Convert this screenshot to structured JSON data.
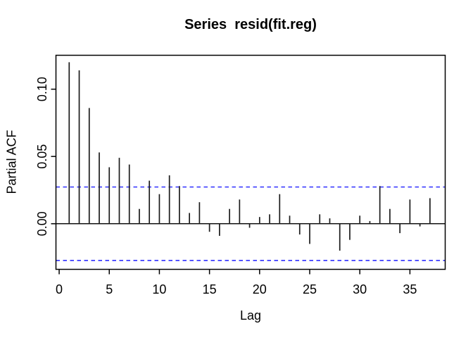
{
  "figure": {
    "title": "Series  resid(fit.reg)"
  },
  "chart_data": {
    "type": "bar",
    "variant": "pacf-stick-plot",
    "title": "Series  resid(fit.reg)",
    "xlabel": "Lag",
    "ylabel": "Partial ACF",
    "lags": [
      1,
      2,
      3,
      4,
      5,
      6,
      7,
      8,
      9,
      10,
      11,
      12,
      13,
      14,
      15,
      16,
      17,
      18,
      19,
      20,
      21,
      22,
      23,
      24,
      25,
      26,
      27,
      28,
      29,
      30,
      31,
      32,
      33,
      34,
      35,
      36,
      37
    ],
    "values": [
      0.12,
      0.114,
      0.086,
      0.053,
      0.042,
      0.049,
      0.044,
      0.011,
      0.032,
      0.022,
      0.036,
      0.028,
      0.008,
      0.016,
      -0.006,
      -0.009,
      0.011,
      0.018,
      -0.003,
      0.005,
      0.007,
      0.022,
      0.006,
      -0.008,
      -0.015,
      0.007,
      0.004,
      -0.02,
      -0.012,
      0.006,
      0.002,
      0.028,
      0.011,
      -0.007,
      0.018,
      -0.002,
      0.019
    ],
    "confidence_bound": 0.0273,
    "confidence_line_style": "dashed",
    "xticks": [
      0,
      5,
      10,
      15,
      20,
      25,
      30,
      35
    ],
    "yticks": [
      {
        "value": 0.0,
        "label": "0.00"
      },
      {
        "value": 0.05,
        "label": "0.05"
      },
      {
        "value": 0.1,
        "label": "0.10"
      }
    ],
    "xlim": [
      -0.32,
      38.52
    ],
    "ylim": [
      -0.0339,
      0.1252
    ],
    "grid": false,
    "legend_position": null,
    "colors": {
      "bar": "#1c1c1c",
      "confidence": "#3c3cff",
      "axis": "#000000",
      "zero_line": "#000000",
      "background": "#ffffff"
    }
  }
}
